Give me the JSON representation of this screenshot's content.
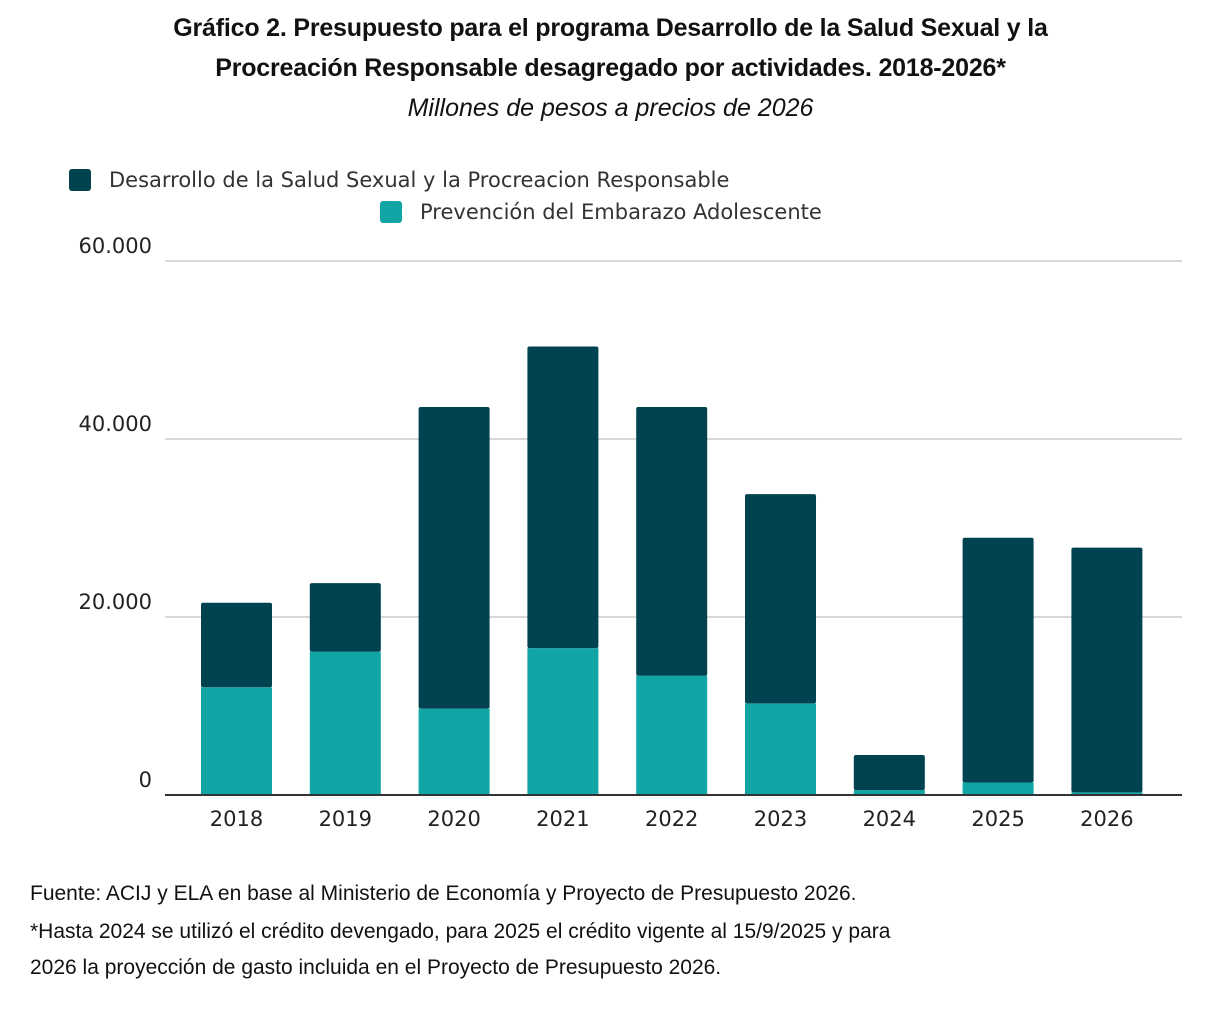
{
  "chart_data": {
    "type": "bar",
    "stacked": true,
    "title": "Gráfico 2. Presupuesto para el programa Desarrollo de la Salud Sexual y la Procreación Responsable desagregado por actividades. 2018-2026*",
    "title_lines": [
      "Gráfico 2. Presupuesto para el programa Desarrollo de la Salud Sexual y la",
      "Procreación Responsable desagregado por actividades. 2018-2026*"
    ],
    "subtitle": "Millones de pesos a precios de 2026",
    "xlabel": "",
    "ylabel": "",
    "categories": [
      "2018",
      "2019",
      "2020",
      "2021",
      "2022",
      "2023",
      "2024",
      "2025",
      "2026"
    ],
    "series": [
      {
        "name": "Prevención del Embarazo Adolescente",
        "color": "#11a5a5",
        "values": [
          12100,
          16100,
          9700,
          16500,
          13400,
          10300,
          550,
          1400,
          300
        ]
      },
      {
        "name": "Desarrollo de la Salud Sexual y la Procreacion Responsable",
        "color": "#00424f",
        "values": [
          9500,
          7700,
          33900,
          33900,
          30200,
          23500,
          3950,
          27500,
          27500
        ]
      }
    ],
    "legend_order": [
      1,
      0
    ],
    "legend_placement": "top-left",
    "ylim": [
      0,
      60000
    ],
    "yticks": [
      0,
      20000,
      40000,
      60000
    ],
    "ytick_labels": [
      "0",
      "20.000",
      "40.000",
      "60.000"
    ],
    "grid": true
  },
  "notes": [
    "Fuente: ACIJ y ELA en base al Ministerio de Economía y Proyecto de Presupuesto 2026.",
    "*Hasta 2024 se utilizó el crédito devengado, para 2025 el crédito vigente al 15/9/2025 y para",
    "2026 la proyección de gasto incluida en el Proyecto de Presupuesto 2026."
  ]
}
